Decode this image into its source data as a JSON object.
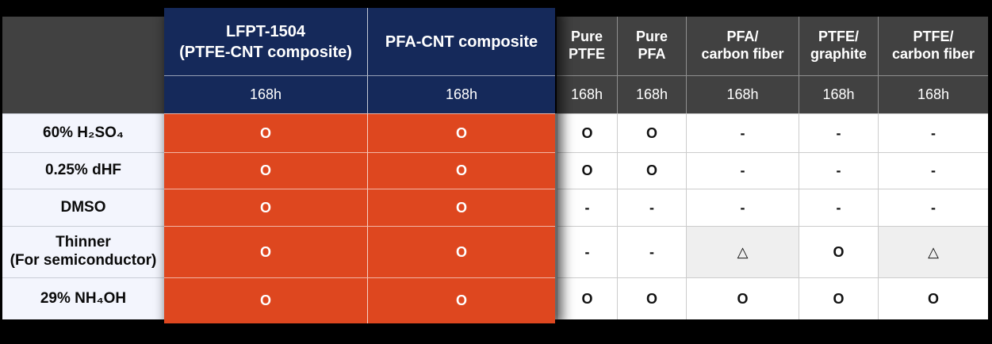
{
  "colors": {
    "background": "#000000",
    "header_gray": "#414141",
    "highlight_navy": "#15295a",
    "highlight_orange": "#de471f",
    "row_label_bg": "#f3f5fd",
    "cell_bg": "#ffffff",
    "cell_shaded_bg": "#efefef",
    "grid_line": "#cccccc"
  },
  "table": {
    "columns": [
      {
        "line1": "LFPT-1504",
        "line2": "(PTFE-CNT composite)",
        "duration": "168h",
        "highlighted": true
      },
      {
        "line1": "PFA-CNT composite",
        "line2": "",
        "duration": "168h",
        "highlighted": true
      },
      {
        "line1": "Pure",
        "line2": "PTFE",
        "duration": "168h",
        "highlighted": false
      },
      {
        "line1": "Pure",
        "line2": "PFA",
        "duration": "168h",
        "highlighted": false
      },
      {
        "line1": "PFA/",
        "line2": "carbon fiber",
        "duration": "168h",
        "highlighted": false
      },
      {
        "line1": "PTFE/",
        "line2": "graphite",
        "duration": "168h",
        "highlighted": false
      },
      {
        "line1": "PTFE/",
        "line2": "carbon fiber",
        "duration": "168h",
        "highlighted": false
      }
    ],
    "rows": [
      {
        "label1": "60% H₂SO₄",
        "label2": "",
        "marks": [
          "O",
          "O",
          "O",
          "O",
          "-",
          "-",
          "-"
        ]
      },
      {
        "label1": "0.25% dHF",
        "label2": "",
        "marks": [
          "O",
          "O",
          "O",
          "O",
          "-",
          "-",
          "-"
        ]
      },
      {
        "label1": "DMSO",
        "label2": "",
        "marks": [
          "O",
          "O",
          "-",
          "-",
          "-",
          "-",
          "-"
        ]
      },
      {
        "label1": "Thinner",
        "label2": "(For semiconductor)",
        "marks": [
          "O",
          "O",
          "-",
          "-",
          "△",
          "O",
          "△"
        ]
      },
      {
        "label1": "29% NH₄OH",
        "label2": "",
        "marks": [
          "O",
          "O",
          "O",
          "O",
          "O",
          "O",
          "O"
        ]
      }
    ]
  },
  "chart_data": {
    "type": "table",
    "columns": [
      "LFPT-1504 (PTFE-CNT composite)",
      "PFA-CNT composite",
      "Pure PTFE",
      "Pure PFA",
      "PFA/carbon fiber",
      "PTFE/graphite",
      "PTFE/carbon fiber"
    ],
    "exposure_durations": [
      "168h",
      "168h",
      "168h",
      "168h",
      "168h",
      "168h",
      "168h"
    ],
    "row_labels": [
      "60% H₂SO₄",
      "0.25% dHF",
      "DMSO",
      "Thinner (For semiconductor)",
      "29% NH₄OH"
    ],
    "cells": [
      [
        "O",
        "O",
        "O",
        "O",
        "-",
        "-",
        "-"
      ],
      [
        "O",
        "O",
        "O",
        "O",
        "-",
        "-",
        "-"
      ],
      [
        "O",
        "O",
        "-",
        "-",
        "-",
        "-",
        "-"
      ],
      [
        "O",
        "O",
        "-",
        "-",
        "△",
        "O",
        "△"
      ],
      [
        "O",
        "O",
        "O",
        "O",
        "O",
        "O",
        "O"
      ]
    ],
    "highlighted_columns": [
      "LFPT-1504 (PTFE-CNT composite)",
      "PFA-CNT composite"
    ],
    "shaded_cells": [
      {
        "row": "Thinner (For semiconductor)",
        "column": "PFA/carbon fiber"
      },
      {
        "row": "Thinner (For semiconductor)",
        "column": "PTFE/carbon fiber"
      }
    ],
    "legend_position": "none",
    "grid": true
  }
}
